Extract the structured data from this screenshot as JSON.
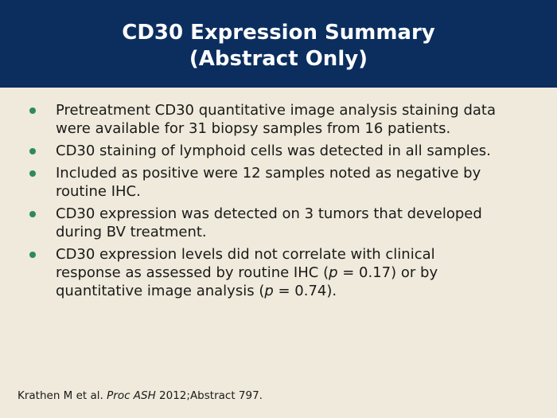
{
  "header": {
    "title_lines": [
      "CD30 Expression Summary",
      "(Abstract Only)"
    ]
  },
  "bullets": [
    [
      "Pretreatment CD30 quantitative image analysis staining data were available for 31 biopsy samples from 16 patients."
    ],
    [
      "CD30 staining of lymphoid cells was detected in all samples."
    ],
    [
      "Included as positive were 12 samples noted as negative by routine IHC."
    ],
    [
      "CD30 expression was detected on 3 tumors that developed during BV treatment."
    ],
    [
      "CD30 expression levels did not correlate with clinical response as assessed by routine IHC (",
      "p",
      " = 0.17) or by quantitative image analysis (",
      "p",
      " = 0.74)."
    ]
  ],
  "citation": [
    "Krathen M et al. ",
    "Proc ASH",
    " 2012;Abstract 797."
  ]
}
